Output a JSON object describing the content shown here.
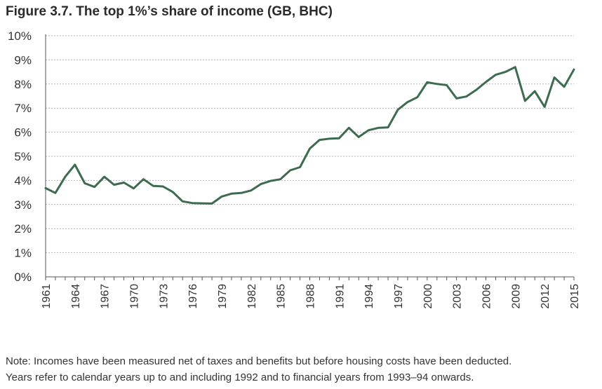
{
  "title": "Figure 3.7. The top 1%’s share of income (GB, BHC)",
  "notes": {
    "line1": "Note: Incomes have been measured net of taxes and benefits but before housing costs have been deducted.",
    "line2": "Years refer to calendar years up to and including 1992 and to financial years from 1993–94 onwards."
  },
  "colors": {
    "series": "#3d6b50",
    "grid": "#b5b5b5",
    "axis": "#555555"
  },
  "chart_data": {
    "type": "line",
    "title": "Figure 3.7. The top 1%’s share of income (GB, BHC)",
    "xlabel": "",
    "ylabel": "",
    "ylim": [
      0,
      10
    ],
    "xlim": [
      1961,
      2015
    ],
    "y_ticks": [
      "0%",
      "1%",
      "2%",
      "3%",
      "4%",
      "5%",
      "6%",
      "7%",
      "8%",
      "9%",
      "10%"
    ],
    "x_ticks": [
      "1961",
      "1964",
      "1967",
      "1970",
      "1973",
      "1976",
      "1979",
      "1982",
      "1985",
      "1988",
      "1991",
      "1994",
      "1997",
      "2000",
      "2003",
      "2006",
      "2009",
      "2012",
      "2015"
    ],
    "grid": "horizontal dotted",
    "legend": "none",
    "series": [
      {
        "x": [
          1961,
          1962,
          1963,
          1964,
          1965,
          1966,
          1967,
          1968,
          1969,
          1970,
          1971,
          1972,
          1973,
          1974,
          1975,
          1976,
          1977,
          1978,
          1979,
          1980,
          1981,
          1982,
          1983,
          1984,
          1985,
          1986,
          1987,
          1988,
          1989,
          1990,
          1991,
          1992,
          1993,
          1994,
          1995,
          1996,
          1997,
          1998,
          1999,
          2000,
          2001,
          2002,
          2003,
          2004,
          2005,
          2006,
          2007,
          2008,
          2009,
          2010,
          2011,
          2012,
          2013,
          2014,
          2015
        ],
        "values": [
          3.68,
          3.48,
          4.15,
          4.65,
          3.88,
          3.73,
          4.15,
          3.82,
          3.91,
          3.67,
          4.05,
          3.77,
          3.75,
          3.52,
          3.13,
          3.06,
          3.05,
          3.04,
          3.33,
          3.45,
          3.48,
          3.58,
          3.85,
          3.98,
          4.05,
          4.42,
          4.55,
          5.32,
          5.68,
          5.73,
          5.75,
          6.18,
          5.8,
          6.08,
          6.18,
          6.2,
          6.93,
          7.25,
          7.45,
          8.07,
          8.0,
          7.95,
          7.4,
          7.48,
          7.75,
          8.08,
          8.38,
          8.5,
          8.7,
          7.3,
          7.7,
          7.05,
          8.27,
          7.88,
          8.6
        ]
      }
    ]
  }
}
